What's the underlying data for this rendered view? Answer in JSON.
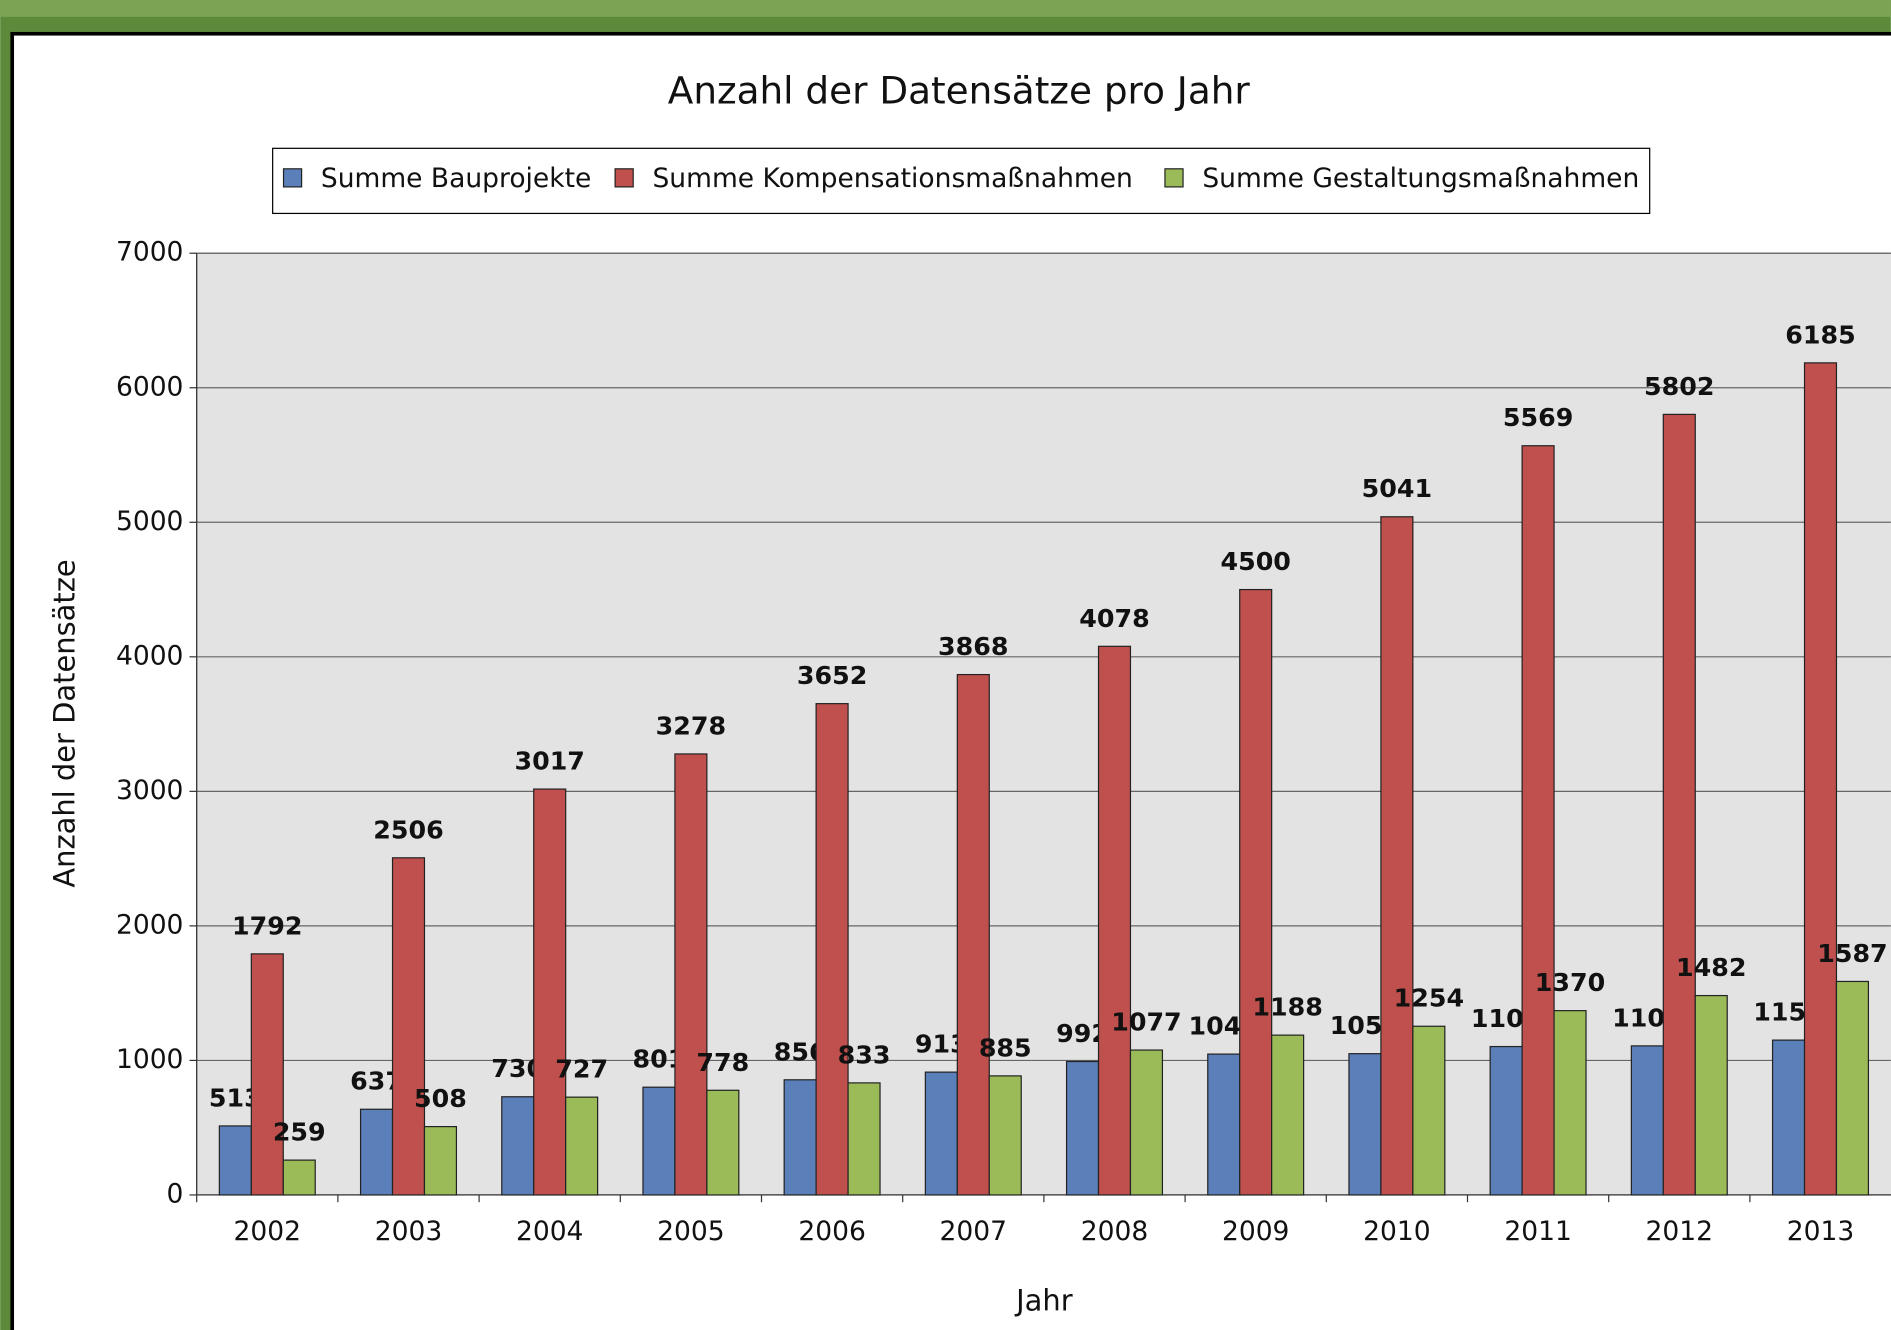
{
  "chart_data": {
    "type": "bar",
    "title": "Anzahl der Datensätze pro Jahr",
    "x_label": "Jahr",
    "y_label": "Anzahl der Datensätze",
    "categories": [
      "2002",
      "2003",
      "2004",
      "2005",
      "2006",
      "2007",
      "2008",
      "2009",
      "2010",
      "2011",
      "2012",
      "2013"
    ],
    "series": [
      {
        "name": "Summe Bauprojekte",
        "color": "#5b7fb9",
        "values": [
          513,
          637,
          730,
          801,
          856,
          913,
          992,
          1047,
          1050,
          1103,
          1108,
          1151
        ]
      },
      {
        "name": "Summe Kompensationsmaßnahmen",
        "color": "#c0504d",
        "values": [
          1792,
          2506,
          3017,
          3278,
          3652,
          3868,
          4078,
          4500,
          5041,
          5569,
          5802,
          6185
        ]
      },
      {
        "name": "Summe Gestaltungsmaßnahmen",
        "color": "#9bbb59",
        "values": [
          259,
          508,
          727,
          778,
          833,
          885,
          1077,
          1188,
          1254,
          1370,
          1482,
          1587
        ]
      }
    ],
    "ylim": [
      0,
      7000
    ],
    "yticks": [
      0,
      1000,
      2000,
      3000,
      4000,
      5000,
      6000,
      7000
    ],
    "grid": true,
    "legend": "top"
  }
}
